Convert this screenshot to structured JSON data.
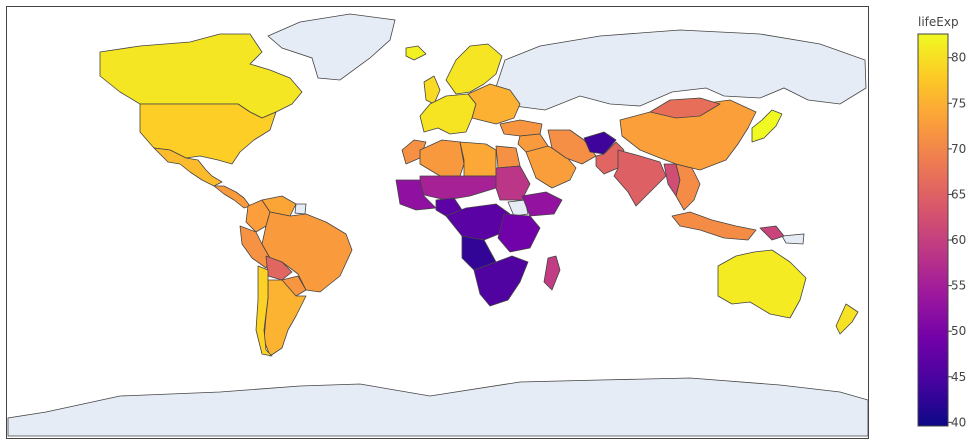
{
  "chart_data": {
    "type": "choropleth",
    "projection": "equirectangular",
    "colorbar": {
      "title": "lifeExp",
      "range": [
        39.6,
        82.6
      ],
      "ticks": [
        "40",
        "45",
        "50",
        "55",
        "60",
        "65",
        "70",
        "75",
        "80"
      ],
      "tick_values": [
        40,
        45,
        50,
        55,
        60,
        65,
        70,
        75,
        80
      ],
      "colorscale": [
        "#0d0887",
        "#46039f",
        "#7201a8",
        "#9c179e",
        "#bd3786",
        "#d8576b",
        "#ed7953",
        "#fb9f3a",
        "#fdca26",
        "#f0f921"
      ]
    },
    "colors": {
      "land_no_data": "#e5ecf6",
      "ocean": "#ffffff",
      "border": "#444444",
      "frame": "#444444"
    },
    "regions": [
      {
        "name": "Canada",
        "value": 80.7
      },
      {
        "name": "United States",
        "value": 78.2
      },
      {
        "name": "Mexico",
        "value": 76.2
      },
      {
        "name": "Central America",
        "value": 72.5
      },
      {
        "name": "Colombia",
        "value": 72.9
      },
      {
        "name": "Venezuela",
        "value": 73.7
      },
      {
        "name": "Peru",
        "value": 71.4
      },
      {
        "name": "Brazil",
        "value": 72.4
      },
      {
        "name": "Bolivia",
        "value": 65.6
      },
      {
        "name": "Paraguay",
        "value": 71.8
      },
      {
        "name": "Argentina",
        "value": 75.3
      },
      {
        "name": "Chile",
        "value": 78.6
      },
      {
        "name": "Iceland",
        "value": 81.8
      },
      {
        "name": "Scandinavia",
        "value": 80.6
      },
      {
        "name": "United Kingdom",
        "value": 79.4
      },
      {
        "name": "Western Europe",
        "value": 80.5
      },
      {
        "name": "Eastern Europe",
        "value": 75.0
      },
      {
        "name": "Turkey",
        "value": 71.8
      },
      {
        "name": "Middle East",
        "value": 72.5
      },
      {
        "name": "Saudi Arabia",
        "value": 72.8
      },
      {
        "name": "Iran",
        "value": 71.0
      },
      {
        "name": "Afghanistan",
        "value": 43.8
      },
      {
        "name": "Pakistan",
        "value": 65.5
      },
      {
        "name": "India",
        "value": 64.7
      },
      {
        "name": "Myanmar",
        "value": 62.1
      },
      {
        "name": "Southeast Asia",
        "value": 70.6
      },
      {
        "name": "China",
        "value": 73.0
      },
      {
        "name": "Mongolia",
        "value": 66.8
      },
      {
        "name": "Japan",
        "value": 82.6
      },
      {
        "name": "Indonesia",
        "value": 70.7
      },
      {
        "name": "Papua New Guinea",
        "value": 60.7
      },
      {
        "name": "Australia",
        "value": 81.2
      },
      {
        "name": "New Zealand",
        "value": 80.2
      },
      {
        "name": "Morocco",
        "value": 71.2
      },
      {
        "name": "Algeria",
        "value": 72.3
      },
      {
        "name": "Libya",
        "value": 74.0
      },
      {
        "name": "Egypt",
        "value": 71.3
      },
      {
        "name": "Sahel",
        "value": 55.5
      },
      {
        "name": "West Africa",
        "value": 52.5
      },
      {
        "name": "Nigeria",
        "value": 46.9
      },
      {
        "name": "Sudan",
        "value": 58.6
      },
      {
        "name": "Ethiopia",
        "value": 52.9
      },
      {
        "name": "Central Africa",
        "value": 46.5
      },
      {
        "name": "East Africa",
        "value": 49.0
      },
      {
        "name": "Angola",
        "value": 42.7
      },
      {
        "name": "Southern Africa",
        "value": 45.5
      },
      {
        "name": "Madagascar",
        "value": 59.4
      }
    ]
  }
}
